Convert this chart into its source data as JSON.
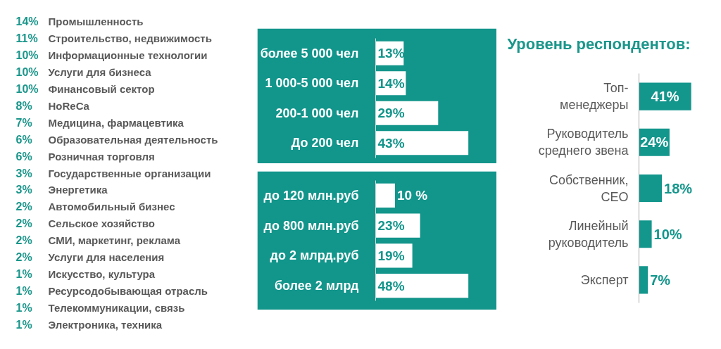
{
  "chart_data": [
    {
      "type": "other",
      "categories": [
        "Промышленность",
        "Строительство, недвижимость",
        "Информационные технологии",
        "Услуги для бизнеса",
        "Финансовый сектор",
        "HoReCa",
        "Медицина, фармацевтика",
        "Образовательная деятельность",
        "Розничная торговля",
        "Государственные организации",
        "Энергетика",
        "Автомобильный бизнес",
        "Сельское хозяйство",
        "СМИ, маркетинг, реклама",
        "Услуги для населения",
        "Искусство, культура",
        "Ресурсодобывающая отрасль",
        "Телекоммуникации, связь",
        "Электроника, техника"
      ],
      "values": [
        14,
        11,
        10,
        10,
        10,
        8,
        7,
        6,
        6,
        3,
        3,
        2,
        2,
        2,
        2,
        1,
        1,
        1,
        1
      ],
      "value_labels": [
        "14%",
        "11%",
        "10%",
        "10%",
        "10%",
        "8%",
        "7%",
        "6%",
        "6%",
        "3%",
        "3%",
        "2%",
        "2%",
        "2%",
        "2%",
        "1%",
        "1%",
        "1%",
        "1%"
      ],
      "color": "#1a968b"
    },
    {
      "type": "bar",
      "orientation": "horizontal",
      "categories": [
        "более 5 000 чел",
        "1 000-5 000 чел",
        "200-1 000 чел",
        "До 200 чел"
      ],
      "values": [
        13,
        14,
        29,
        43
      ],
      "value_labels": [
        "13%",
        "14%",
        "29%",
        "43%"
      ],
      "color": "#ffffff",
      "tick_labels": "y"
    },
    {
      "type": "bar",
      "orientation": "horizontal",
      "categories": [
        "до 120 млн.руб",
        "до 800 млн.руб",
        "до 2 млрд.руб",
        "более 2 млрд"
      ],
      "values": [
        10,
        23,
        19,
        48
      ],
      "value_labels": [
        "10 %",
        "23%",
        "19%",
        "48%"
      ],
      "color": "#ffffff",
      "tick_labels": "y"
    },
    {
      "type": "bar",
      "orientation": "horizontal",
      "title": "Уровень респондентов:",
      "categories": [
        "Топ-\nменеджеры",
        "Руководитель\nсреднего звена",
        "Собственник,\nCEO",
        "Линейный\nруководитель",
        "Эксперт"
      ],
      "values": [
        41,
        24,
        18,
        10,
        7
      ],
      "value_labels": [
        "41%",
        "24%",
        "18%",
        "10%",
        "7%"
      ],
      "color": "#13968c",
      "tick_labels": "y"
    }
  ]
}
